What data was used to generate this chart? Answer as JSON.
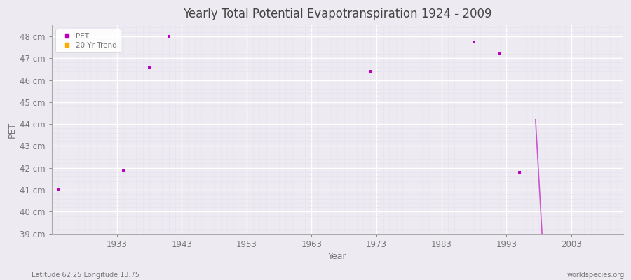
{
  "title": "Yearly Total Potential Evapotranspiration 1924 - 2009",
  "xlabel": "Year",
  "ylabel": "PET",
  "subtitle_left": "Latitude 62.25 Longitude 13.75",
  "subtitle_right": "worldspecies.org",
  "xlim": [
    1923,
    2011
  ],
  "ylim": [
    39.0,
    48.5
  ],
  "ytick_labels": [
    "39 cm",
    "40 cm",
    "41 cm",
    "42 cm",
    "43 cm",
    "44 cm",
    "45 cm",
    "46 cm",
    "47 cm",
    "48 cm"
  ],
  "ytick_values": [
    39,
    40,
    41,
    42,
    43,
    44,
    45,
    46,
    47,
    48
  ],
  "xtick_values": [
    1933,
    1943,
    1953,
    1963,
    1973,
    1983,
    1993,
    2003
  ],
  "pet_points": [
    [
      1924,
      41.0
    ],
    [
      1934,
      41.9
    ],
    [
      1938,
      46.6
    ],
    [
      1941,
      48.0
    ],
    [
      1972,
      46.4
    ],
    [
      1988,
      47.75
    ],
    [
      1992,
      47.2
    ],
    [
      1995,
      41.8
    ]
  ],
  "trend_line": [
    [
      1997.5,
      44.2
    ],
    [
      1998.5,
      39.0
    ]
  ],
  "pet_color": "#bb00bb",
  "trend_color": "#cc55cc",
  "bg_color": "#eeeaf2",
  "plot_bg": "#eeeaf2",
  "grid_major_color": "#ffffff",
  "grid_minor_color": "#e8e4f0",
  "axis_color": "#aaaaaa",
  "text_color": "#777777",
  "title_color": "#444444"
}
